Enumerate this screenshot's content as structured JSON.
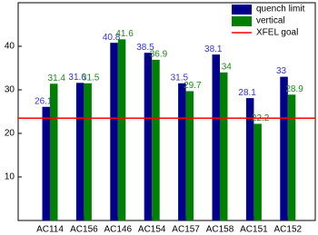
{
  "chart_data": {
    "type": "bar",
    "categories": [
      "AC114",
      "AC156",
      "AC146",
      "AC154",
      "AC157",
      "AC158",
      "AC151",
      "AC152"
    ],
    "series": [
      {
        "name": "quench limit",
        "color": "#00008b",
        "label_color": "#3333cc",
        "values": [
          26.1,
          31.6,
          40.8,
          38.5,
          31.5,
          38.1,
          28.1,
          33
        ]
      },
      {
        "name": "vertical",
        "color": "#008000",
        "label_color": "#1a8a1a",
        "values": [
          31.4,
          31.5,
          41.6,
          36.9,
          29.7,
          34,
          22.2,
          28.9
        ]
      }
    ],
    "reference_lines": [
      {
        "name": "XFEL goal",
        "color": "#ff0000",
        "value": 23.5
      }
    ],
    "ylim": [
      0,
      50
    ],
    "yticks": [
      10,
      20,
      30,
      40
    ],
    "grid": false,
    "legend": "top-right"
  }
}
